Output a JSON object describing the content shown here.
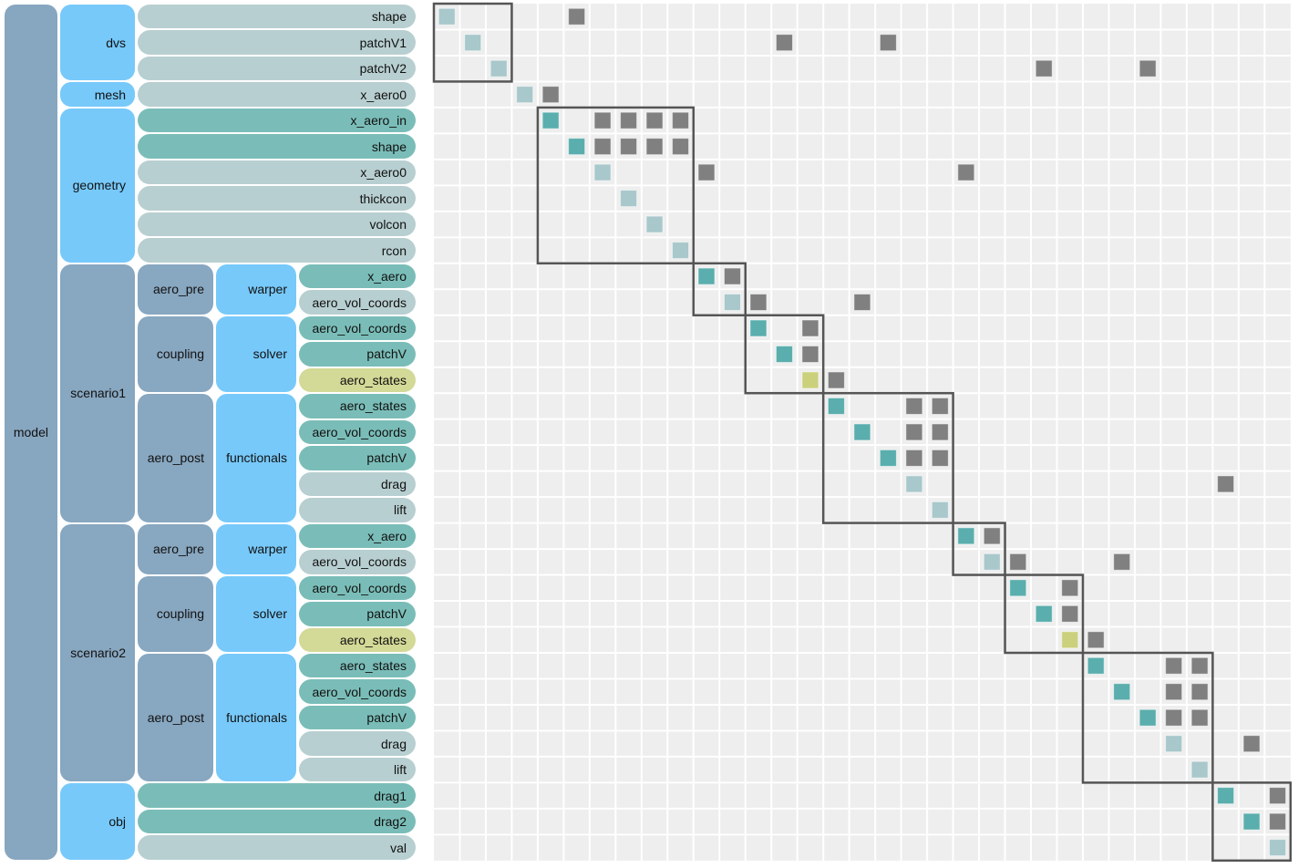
{
  "colors": {
    "group_root": "#87a6c0",
    "group_light": "#77c9fa",
    "group_dark": "#88a7c0",
    "leaf_input": "#b8cfd1",
    "leaf_output": "#7abdb8",
    "leaf_state": "#d3d996",
    "cell_input": "#a8c8cb",
    "cell_output": "#5aaead",
    "cell_state": "#cbd07c",
    "cell_offdiag": "#808080",
    "matrix_bg": "#eeeeee",
    "box": "#555555"
  },
  "tree": {
    "label": "model",
    "children": [
      {
        "label": "dvs",
        "children": [
          {
            "label": "shape",
            "type": "input"
          },
          {
            "label": "patchV1",
            "type": "input"
          },
          {
            "label": "patchV2",
            "type": "input"
          }
        ]
      },
      {
        "label": "mesh",
        "children": [
          {
            "label": "x_aero0",
            "type": "input"
          }
        ]
      },
      {
        "label": "geometry",
        "children": [
          {
            "label": "x_aero_in",
            "type": "output"
          },
          {
            "label": "shape",
            "type": "output"
          },
          {
            "label": "x_aero0",
            "type": "input"
          },
          {
            "label": "thickcon",
            "type": "input"
          },
          {
            "label": "volcon",
            "type": "input"
          },
          {
            "label": "rcon",
            "type": "input"
          }
        ]
      },
      {
        "label": "scenario1",
        "children": [
          {
            "label": "aero_pre",
            "children": [
              {
                "label": "warper",
                "children": [
                  {
                    "label": "x_aero",
                    "type": "output"
                  },
                  {
                    "label": "aero_vol_coords",
                    "type": "input"
                  }
                ]
              }
            ]
          },
          {
            "label": "coupling",
            "children": [
              {
                "label": "solver",
                "children": [
                  {
                    "label": "aero_vol_coords",
                    "type": "output"
                  },
                  {
                    "label": "patchV",
                    "type": "output"
                  },
                  {
                    "label": "aero_states",
                    "type": "state"
                  }
                ]
              }
            ]
          },
          {
            "label": "aero_post",
            "children": [
              {
                "label": "functionals",
                "children": [
                  {
                    "label": "aero_states",
                    "type": "output"
                  },
                  {
                    "label": "aero_vol_coords",
                    "type": "output"
                  },
                  {
                    "label": "patchV",
                    "type": "output"
                  },
                  {
                    "label": "drag",
                    "type": "input"
                  },
                  {
                    "label": "lift",
                    "type": "input"
                  }
                ]
              }
            ]
          }
        ]
      },
      {
        "label": "scenario2",
        "children": [
          {
            "label": "aero_pre",
            "children": [
              {
                "label": "warper",
                "children": [
                  {
                    "label": "x_aero",
                    "type": "output"
                  },
                  {
                    "label": "aero_vol_coords",
                    "type": "input"
                  }
                ]
              }
            ]
          },
          {
            "label": "coupling",
            "children": [
              {
                "label": "solver",
                "children": [
                  {
                    "label": "aero_vol_coords",
                    "type": "output"
                  },
                  {
                    "label": "patchV",
                    "type": "output"
                  },
                  {
                    "label": "aero_states",
                    "type": "state"
                  }
                ]
              }
            ]
          },
          {
            "label": "aero_post",
            "children": [
              {
                "label": "functionals",
                "children": [
                  {
                    "label": "aero_states",
                    "type": "output"
                  },
                  {
                    "label": "aero_vol_coords",
                    "type": "output"
                  },
                  {
                    "label": "patchV",
                    "type": "output"
                  },
                  {
                    "label": "drag",
                    "type": "input"
                  },
                  {
                    "label": "lift",
                    "type": "input"
                  }
                ]
              }
            ]
          }
        ]
      },
      {
        "label": "obj",
        "children": [
          {
            "label": "drag1",
            "type": "output"
          },
          {
            "label": "drag2",
            "type": "output"
          },
          {
            "label": "val",
            "type": "input"
          }
        ]
      }
    ]
  },
  "connections": [
    [
      0,
      5
    ],
    [
      1,
      13
    ],
    [
      1,
      17
    ],
    [
      2,
      23
    ],
    [
      2,
      27
    ],
    [
      3,
      4
    ],
    [
      4,
      6
    ],
    [
      4,
      7
    ],
    [
      4,
      8
    ],
    [
      4,
      9
    ],
    [
      5,
      6
    ],
    [
      5,
      7
    ],
    [
      5,
      8
    ],
    [
      5,
      9
    ],
    [
      6,
      10
    ],
    [
      6,
      20
    ],
    [
      10,
      11
    ],
    [
      11,
      12
    ],
    [
      11,
      16
    ],
    [
      12,
      14
    ],
    [
      13,
      14
    ],
    [
      14,
      15
    ],
    [
      15,
      18
    ],
    [
      15,
      19
    ],
    [
      16,
      18
    ],
    [
      16,
      19
    ],
    [
      17,
      18
    ],
    [
      17,
      19
    ],
    [
      18,
      30
    ],
    [
      20,
      21
    ],
    [
      21,
      22
    ],
    [
      21,
      26
    ],
    [
      22,
      24
    ],
    [
      23,
      24
    ],
    [
      24,
      25
    ],
    [
      25,
      28
    ],
    [
      25,
      29
    ],
    [
      26,
      28
    ],
    [
      26,
      29
    ],
    [
      27,
      28
    ],
    [
      27,
      29
    ],
    [
      28,
      31
    ],
    [
      30,
      32
    ],
    [
      31,
      32
    ]
  ]
}
